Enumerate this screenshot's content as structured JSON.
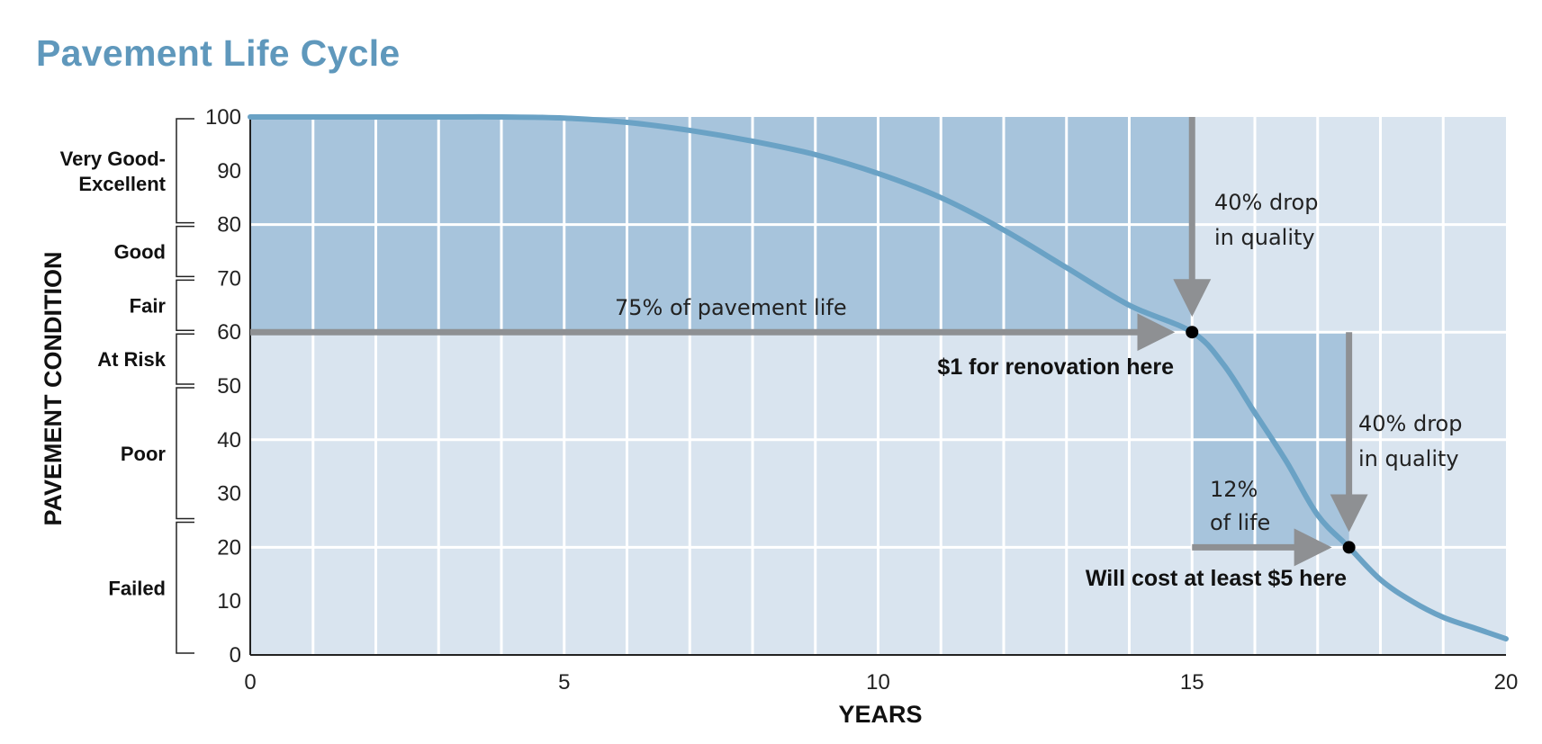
{
  "title": "Pavement Life Cycle",
  "colors": {
    "title": "#5f98bc",
    "curve": "#6aa2c5",
    "band_dark": "#a7c4dc",
    "band_light": "#d9e4ef",
    "arrow": "#8e9093",
    "grid": "#ffffff"
  },
  "chart_data": {
    "type": "line",
    "title": "Pavement Life Cycle",
    "xlabel": "YEARS",
    "ylabel": "PAVEMENT CONDITION",
    "xlim": [
      0,
      20
    ],
    "ylim": [
      0,
      100
    ],
    "x_ticks": [
      0,
      5,
      10,
      15,
      20
    ],
    "y_ticks": [
      0,
      10,
      20,
      30,
      40,
      50,
      60,
      70,
      80,
      90,
      100
    ],
    "grid": true,
    "series": [
      {
        "x": [
          0,
          1,
          2,
          3,
          4,
          5,
          6,
          7,
          8,
          9,
          10,
          11,
          12,
          13,
          14,
          15,
          15.5,
          16,
          16.5,
          17,
          17.5,
          18,
          18.5,
          19,
          19.5,
          20
        ],
        "y": [
          100,
          100,
          100,
          100,
          100,
          99.8,
          99,
          97.5,
          95.5,
          93,
          89.5,
          85,
          79,
          72,
          65,
          60,
          54,
          45,
          36,
          26,
          20,
          14,
          10,
          7,
          5,
          3
        ]
      }
    ],
    "condition_bands": [
      {
        "label": "Very Good-Excellent",
        "range": [
          80,
          100
        ]
      },
      {
        "label": "Good",
        "range": [
          70,
          80
        ]
      },
      {
        "label": "Fair",
        "range": [
          60,
          70
        ]
      },
      {
        "label": "At Risk",
        "range": [
          50,
          60
        ]
      },
      {
        "label": "Poor",
        "range": [
          25,
          50
        ]
      },
      {
        "label": "Failed",
        "range": [
          0,
          25
        ]
      }
    ],
    "markers": [
      {
        "x": 15,
        "y": 60
      },
      {
        "x": 17.5,
        "y": 20
      }
    ],
    "shaded_regions": [
      {
        "x": [
          0,
          15
        ],
        "y": [
          60,
          100
        ]
      },
      {
        "x": [
          15,
          17.5
        ],
        "y": [
          20,
          60
        ]
      }
    ],
    "annotations": {
      "life_75": "75% of pavement life",
      "renovate_1": "$1 for renovation here",
      "drop_1_line1": "40% drop",
      "drop_1_line2": "in quality",
      "drop_2_line1": "40% drop",
      "drop_2_line2": "in quality",
      "life_12_line1": "12%",
      "life_12_line2": "of life",
      "cost_5": "Will cost at least $5 here"
    }
  }
}
